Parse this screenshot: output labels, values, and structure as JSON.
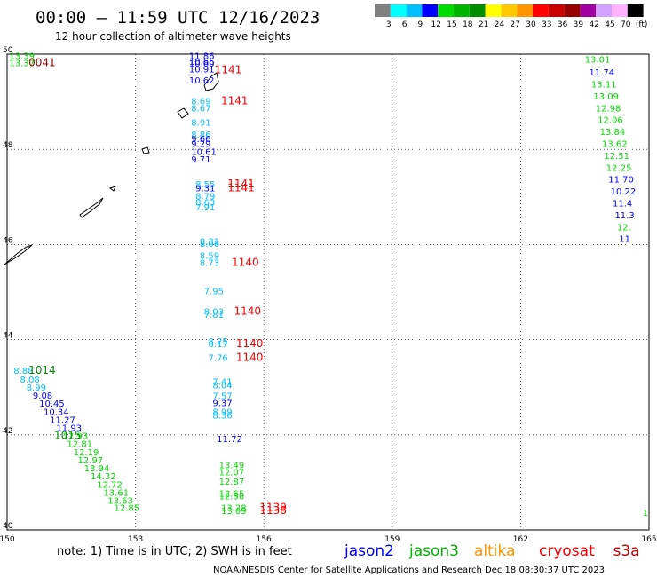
{
  "header": {
    "title": "00:00 – 11:59 UTC 12/16/2023",
    "subtitle": "12 hour collection of altimeter wave heights"
  },
  "colorbar": {
    "colors": [
      "#808080",
      "#00ffff",
      "#00bfff",
      "#0000ff",
      "#00dc00",
      "#00b400",
      "#008c00",
      "#ffff00",
      "#ffc800",
      "#ff9600",
      "#ff0000",
      "#c80000",
      "#960000",
      "#a000a0",
      "#d2a0ff",
      "#ffb4ff",
      "#000000"
    ],
    "labels": [
      "3",
      "6",
      "9",
      "12",
      "15",
      "18",
      "21",
      "24",
      "27",
      "30",
      "33",
      "36",
      "39",
      "42",
      "45",
      "70",
      "(ft)"
    ]
  },
  "footer": {
    "note": "note:  1) Time is in UTC;  2) SWH is in feet",
    "credit": "NOAA/NESDIS Center for Satellite Applications and Research    Dec 18 08:30:37 UTC 2023",
    "satellites": [
      {
        "name": "jason2",
        "color": "#0000ff"
      },
      {
        "name": "jason3",
        "color": "#00b400"
      },
      {
        "name": "altika",
        "color": "#ff9600"
      },
      {
        "name": "cryosat",
        "color": "#ff0000"
      },
      {
        "name": "s3a",
        "color": "#c80000"
      }
    ]
  },
  "chart_data": {
    "type": "scatter",
    "xlim": [
      150,
      165
    ],
    "ylim": [
      40,
      50
    ],
    "x_ticks": [
      "150",
      "153",
      "156",
      "159",
      "162",
      "165"
    ],
    "y_ticks": [
      "40",
      "42",
      "44",
      "46",
      "48",
      "50"
    ],
    "grid": true,
    "points": [
      {
        "lon": 150.05,
        "lat": 49.9,
        "v": "13.39",
        "c": "#00dc00"
      },
      {
        "lon": 150.05,
        "lat": 49.75,
        "v": "13.37",
        "c": "#00dc00"
      },
      {
        "lon": 154.25,
        "lat": 49.9,
        "v": "11.86",
        "c": "#0000ff"
      },
      {
        "lon": 154.25,
        "lat": 49.78,
        "v": "10.66",
        "c": "#0000ff"
      },
      {
        "lon": 154.25,
        "lat": 49.74,
        "v": "10.60",
        "c": "#0000ff"
      },
      {
        "lon": 154.25,
        "lat": 49.62,
        "v": "10.91",
        "c": "#0000ff"
      },
      {
        "lon": 154.25,
        "lat": 49.38,
        "v": "10.62",
        "c": "#0000ff"
      },
      {
        "lon": 154.3,
        "lat": 48.95,
        "v": "8.69",
        "c": "#00bfff"
      },
      {
        "lon": 154.3,
        "lat": 48.8,
        "v": "8.67",
        "c": "#00bfff"
      },
      {
        "lon": 154.3,
        "lat": 48.5,
        "v": "8.91",
        "c": "#00bfff"
      },
      {
        "lon": 154.3,
        "lat": 48.25,
        "v": "8.86",
        "c": "#00bfff"
      },
      {
        "lon": 154.3,
        "lat": 48.15,
        "v": "9.66",
        "c": "#0000ff"
      },
      {
        "lon": 154.3,
        "lat": 48.05,
        "v": "9.29",
        "c": "#0000ff"
      },
      {
        "lon": 154.3,
        "lat": 47.88,
        "v": "10.61",
        "c": "#0000ff"
      },
      {
        "lon": 154.3,
        "lat": 47.72,
        "v": "9.71",
        "c": "#0000ff"
      },
      {
        "lon": 154.4,
        "lat": 47.2,
        "v": "8.55",
        "c": "#00bfff"
      },
      {
        "lon": 154.4,
        "lat": 47.12,
        "v": "9.31",
        "c": "#0000ff"
      },
      {
        "lon": 154.4,
        "lat": 46.95,
        "v": "8.79",
        "c": "#00bfff"
      },
      {
        "lon": 154.4,
        "lat": 46.82,
        "v": "8.63",
        "c": "#00bfff"
      },
      {
        "lon": 154.4,
        "lat": 46.72,
        "v": "7.91",
        "c": "#00bfff"
      },
      {
        "lon": 154.5,
        "lat": 46.0,
        "v": "8.31",
        "c": "#00bfff"
      },
      {
        "lon": 154.5,
        "lat": 45.95,
        "v": "8.06",
        "c": "#00bfff"
      },
      {
        "lon": 154.5,
        "lat": 45.7,
        "v": "8.59",
        "c": "#00bfff"
      },
      {
        "lon": 154.5,
        "lat": 45.55,
        "v": "8.73",
        "c": "#00bfff"
      },
      {
        "lon": 154.6,
        "lat": 44.95,
        "v": "7.95",
        "c": "#00bfff"
      },
      {
        "lon": 154.6,
        "lat": 44.52,
        "v": "8.03",
        "c": "#00bfff"
      },
      {
        "lon": 154.6,
        "lat": 44.46,
        "v": "7.81",
        "c": "#00bfff"
      },
      {
        "lon": 154.7,
        "lat": 43.9,
        "v": "8.25",
        "c": "#00bfff"
      },
      {
        "lon": 154.7,
        "lat": 43.84,
        "v": "8.17",
        "c": "#00bfff"
      },
      {
        "lon": 154.7,
        "lat": 43.55,
        "v": "7.76",
        "c": "#00bfff"
      },
      {
        "lon": 154.8,
        "lat": 43.05,
        "v": "7.41",
        "c": "#00bfff"
      },
      {
        "lon": 154.8,
        "lat": 42.98,
        "v": "8.04",
        "c": "#00bfff"
      },
      {
        "lon": 154.8,
        "lat": 42.75,
        "v": "7.57",
        "c": "#00bfff"
      },
      {
        "lon": 154.8,
        "lat": 42.6,
        "v": "9.37",
        "c": "#0000ff"
      },
      {
        "lon": 154.8,
        "lat": 42.42,
        "v": "8.99",
        "c": "#00bfff"
      },
      {
        "lon": 154.8,
        "lat": 42.34,
        "v": "8.36",
        "c": "#00bfff"
      },
      {
        "lon": 154.9,
        "lat": 41.85,
        "v": "11.72",
        "c": "#0000ff"
      },
      {
        "lon": 154.95,
        "lat": 41.3,
        "v": "13.49",
        "c": "#00dc00"
      },
      {
        "lon": 154.95,
        "lat": 41.15,
        "v": "12.07",
        "c": "#00dc00"
      },
      {
        "lon": 154.95,
        "lat": 40.95,
        "v": "12.87",
        "c": "#00dc00"
      },
      {
        "lon": 154.95,
        "lat": 40.7,
        "v": "12.65",
        "c": "#00dc00"
      },
      {
        "lon": 154.95,
        "lat": 40.64,
        "v": "12.50",
        "c": "#00dc00"
      },
      {
        "lon": 155.0,
        "lat": 40.4,
        "v": "13.28",
        "c": "#00dc00"
      },
      {
        "lon": 155.0,
        "lat": 40.34,
        "v": "13.09",
        "c": "#00dc00"
      },
      {
        "lon": 150.15,
        "lat": 43.28,
        "v": "8.88",
        "c": "#00bfff"
      },
      {
        "lon": 150.3,
        "lat": 43.1,
        "v": "8.08",
        "c": "#00bfff"
      },
      {
        "lon": 150.45,
        "lat": 42.93,
        "v": "8.99",
        "c": "#00bfff"
      },
      {
        "lon": 150.6,
        "lat": 42.76,
        "v": "9.08",
        "c": "#0000ff"
      },
      {
        "lon": 150.75,
        "lat": 42.59,
        "v": "10.45",
        "c": "#0000ff"
      },
      {
        "lon": 150.85,
        "lat": 42.42,
        "v": "10.34",
        "c": "#0000ff"
      },
      {
        "lon": 151.0,
        "lat": 42.25,
        "v": "11.27",
        "c": "#0000ff"
      },
      {
        "lon": 151.15,
        "lat": 42.08,
        "v": "11.93",
        "c": "#0000ff"
      },
      {
        "lon": 151.3,
        "lat": 41.91,
        "v": "12.93",
        "c": "#00dc00"
      },
      {
        "lon": 151.4,
        "lat": 41.74,
        "v": "12.81",
        "c": "#00dc00"
      },
      {
        "lon": 151.55,
        "lat": 41.57,
        "v": "12.19",
        "c": "#00dc00"
      },
      {
        "lon": 151.65,
        "lat": 41.4,
        "v": "12.97",
        "c": "#00dc00"
      },
      {
        "lon": 151.8,
        "lat": 41.23,
        "v": "13.94",
        "c": "#00dc00"
      },
      {
        "lon": 151.95,
        "lat": 41.06,
        "v": "14.32",
        "c": "#00dc00"
      },
      {
        "lon": 152.1,
        "lat": 40.89,
        "v": "12.72",
        "c": "#00dc00"
      },
      {
        "lon": 152.25,
        "lat": 40.72,
        "v": "13.61",
        "c": "#00dc00"
      },
      {
        "lon": 152.35,
        "lat": 40.55,
        "v": "13.63",
        "c": "#00dc00"
      },
      {
        "lon": 152.5,
        "lat": 40.4,
        "v": "12.85",
        "c": "#00dc00"
      },
      {
        "lon": 163.5,
        "lat": 49.82,
        "v": "13.01",
        "c": "#00dc00"
      },
      {
        "lon": 163.6,
        "lat": 49.55,
        "v": "11.74",
        "c": "#0000ff"
      },
      {
        "lon": 163.65,
        "lat": 49.3,
        "v": "13.11",
        "c": "#00dc00"
      },
      {
        "lon": 163.7,
        "lat": 49.05,
        "v": "13.09",
        "c": "#00dc00"
      },
      {
        "lon": 163.75,
        "lat": 48.8,
        "v": "12.98",
        "c": "#00dc00"
      },
      {
        "lon": 163.8,
        "lat": 48.55,
        "v": "12.06",
        "c": "#00dc00"
      },
      {
        "lon": 163.85,
        "lat": 48.3,
        "v": "13.84",
        "c": "#00dc00"
      },
      {
        "lon": 163.9,
        "lat": 48.05,
        "v": "13.62",
        "c": "#00dc00"
      },
      {
        "lon": 163.95,
        "lat": 47.8,
        "v": "12.51",
        "c": "#00dc00"
      },
      {
        "lon": 164.0,
        "lat": 47.55,
        "v": "12.25",
        "c": "#00dc00"
      },
      {
        "lon": 164.05,
        "lat": 47.3,
        "v": "11.70",
        "c": "#0000ff"
      },
      {
        "lon": 164.1,
        "lat": 47.05,
        "v": "10.22",
        "c": "#0000ff"
      },
      {
        "lon": 164.15,
        "lat": 46.8,
        "v": "11.4",
        "c": "#0000ff"
      },
      {
        "lon": 164.2,
        "lat": 46.55,
        "v": "11.3",
        "c": "#0000ff"
      },
      {
        "lon": 164.25,
        "lat": 46.3,
        "v": "12.",
        "c": "#00dc00"
      },
      {
        "lon": 164.3,
        "lat": 46.05,
        "v": "11",
        "c": "#0000ff"
      },
      {
        "lon": 164.85,
        "lat": 40.3,
        "v": "1",
        "c": "#00dc00"
      }
    ],
    "time_labels": [
      {
        "lon": 150.5,
        "lat": 49.75,
        "v": "0041",
        "c": "#960000"
      },
      {
        "lon": 154.85,
        "lat": 49.6,
        "v": "1141",
        "c": "#ff0000"
      },
      {
        "lon": 155.0,
        "lat": 48.95,
        "v": "1141",
        "c": "#ff0000"
      },
      {
        "lon": 155.15,
        "lat": 47.2,
        "v": "1141",
        "c": "#ff0000"
      },
      {
        "lon": 155.15,
        "lat": 47.12,
        "v": "1141",
        "c": "#ff0000"
      },
      {
        "lon": 155.25,
        "lat": 45.55,
        "v": "1140",
        "c": "#ff0000"
      },
      {
        "lon": 155.3,
        "lat": 44.52,
        "v": "1140",
        "c": "#ff0000"
      },
      {
        "lon": 155.35,
        "lat": 43.84,
        "v": "1140",
        "c": "#ff0000"
      },
      {
        "lon": 155.35,
        "lat": 43.55,
        "v": "1140",
        "c": "#ff0000"
      },
      {
        "lon": 150.5,
        "lat": 43.28,
        "v": "1014",
        "c": "#008c00"
      },
      {
        "lon": 151.1,
        "lat": 41.91,
        "v": "1015",
        "c": "#008c00"
      },
      {
        "lon": 155.9,
        "lat": 40.4,
        "v": "1139",
        "c": "#ff0000"
      },
      {
        "lon": 155.9,
        "lat": 40.34,
        "v": "1138",
        "c": "#ff0000"
      }
    ]
  }
}
